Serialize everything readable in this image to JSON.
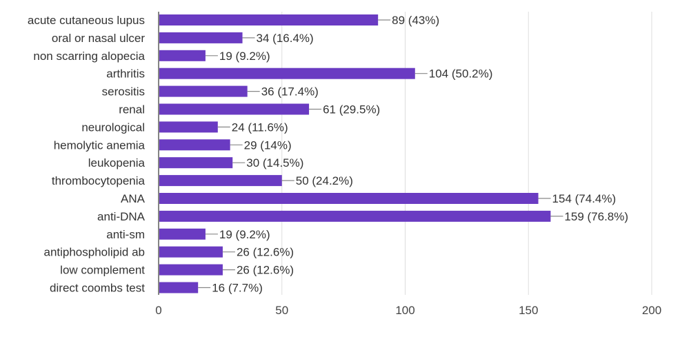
{
  "chart_data": {
    "type": "bar",
    "orientation": "horizontal",
    "categories": [
      "acute cutaneous lupus",
      "oral or nasal ulcer",
      "non scarring alopecia",
      "arthritis",
      "serositis",
      "renal",
      "neurological",
      "hemolytic anemia",
      "leukopenia",
      "thrombocytopenia",
      "ANA",
      "anti-DNA",
      "anti-sm",
      "antiphospholipid ab",
      "low complement",
      "direct coombs test"
    ],
    "values": [
      89,
      34,
      19,
      104,
      36,
      61,
      24,
      29,
      30,
      50,
      154,
      159,
      19,
      26,
      26,
      16
    ],
    "data_labels": [
      "89 (43%)",
      "34 (16.4%)",
      "19 (9.2%)",
      "104 (50.2%)",
      "36 (17.4%)",
      "61 (29.5%)",
      "24 (11.6%)",
      "29 (14%)",
      "30 (14.5%)",
      "50 (24.2%)",
      "154 (74.4%)",
      "159 (76.8%)",
      "19 (9.2%)",
      "26 (12.6%)",
      "26 (12.6%)",
      "16 (7.7%)"
    ],
    "xticks": [
      "0",
      "50",
      "100",
      "150",
      "200"
    ],
    "xlim": [
      0,
      200
    ],
    "grid": true,
    "legend": "none",
    "colors": {
      "bar": "#6a3bc2",
      "grid": "#dddddd",
      "axis": "#333333",
      "leader": "#888888",
      "text": "#333333"
    }
  }
}
